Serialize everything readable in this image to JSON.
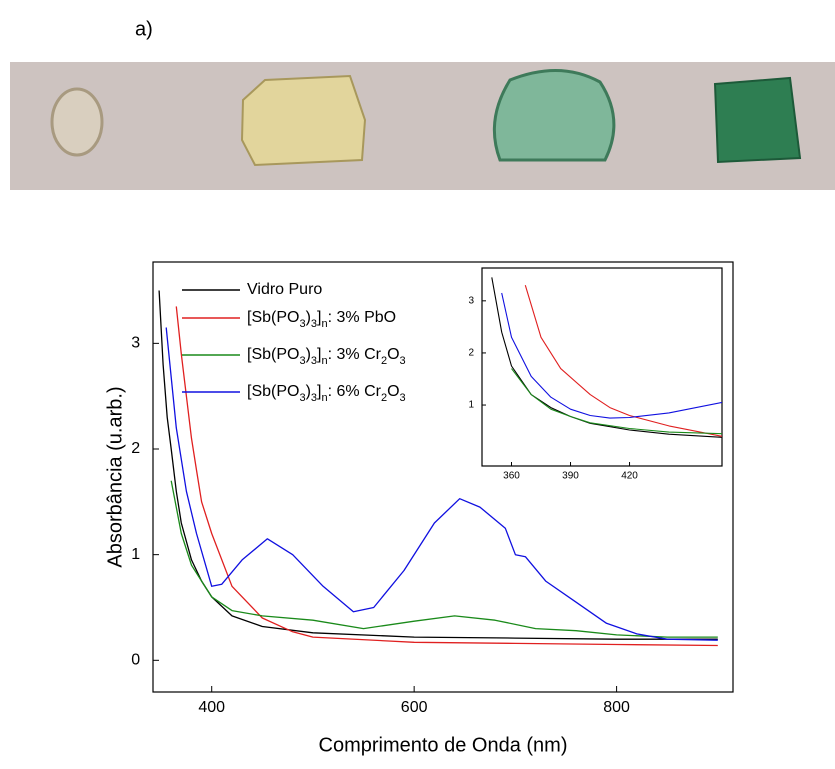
{
  "panel_label": "a)",
  "chart_data": [
    {
      "type": "line",
      "xlabel": "Comprimento de Onda (nm)",
      "ylabel": "Absorbância (u.arb.)",
      "xlim": [
        342,
        915
      ],
      "ylim": [
        -0.3,
        3.77
      ],
      "xticks": [
        400,
        600,
        800
      ],
      "yticks": [
        0,
        1,
        2,
        3
      ],
      "series": [
        {
          "name": "Vidro Puro",
          "color": "#000000",
          "x": [
            348,
            352,
            356,
            360,
            365,
            370,
            380,
            390,
            400,
            420,
            450,
            500,
            600,
            700,
            800,
            900
          ],
          "values": [
            3.5,
            2.8,
            2.3,
            2.0,
            1.6,
            1.3,
            0.95,
            0.75,
            0.6,
            0.42,
            0.32,
            0.26,
            0.22,
            0.21,
            0.2,
            0.2
          ]
        },
        {
          "name": "[Sb(PO3)3]n: 3% PbO",
          "color": "#e02020",
          "x": [
            365,
            370,
            375,
            380,
            385,
            390,
            400,
            420,
            450,
            480,
            500,
            600,
            700,
            800,
            900
          ],
          "values": [
            3.35,
            2.9,
            2.5,
            2.1,
            1.8,
            1.5,
            1.2,
            0.7,
            0.4,
            0.27,
            0.22,
            0.17,
            0.16,
            0.15,
            0.14
          ]
        },
        {
          "name": "[Sb(PO3)3]n: 3% Cr2O3",
          "color": "#1a8a1a",
          "x": [
            360,
            370,
            380,
            390,
            400,
            420,
            450,
            500,
            550,
            600,
            640,
            680,
            720,
            760,
            800,
            850,
            900
          ],
          "values": [
            1.7,
            1.2,
            0.9,
            0.75,
            0.6,
            0.47,
            0.42,
            0.38,
            0.3,
            0.37,
            0.42,
            0.38,
            0.3,
            0.28,
            0.24,
            0.22,
            0.22
          ]
        },
        {
          "name": "[Sb(PO3)3]n: 6% Cr2O3",
          "color": "#1010e0",
          "x": [
            355,
            365,
            375,
            385,
            400,
            410,
            430,
            455,
            480,
            510,
            540,
            560,
            590,
            620,
            645,
            665,
            690,
            700,
            710,
            730,
            760,
            790,
            820,
            850,
            900
          ],
          "values": [
            3.15,
            2.2,
            1.6,
            1.2,
            0.7,
            0.72,
            0.95,
            1.15,
            1.0,
            0.7,
            0.46,
            0.5,
            0.85,
            1.3,
            1.53,
            1.45,
            1.25,
            1.0,
            0.98,
            0.75,
            0.55,
            0.35,
            0.25,
            0.2,
            0.19
          ]
        }
      ]
    },
    {
      "type": "line",
      "xlim": [
        345,
        467
      ],
      "ylim": [
        -0.17,
        3.63
      ],
      "xticks": [
        360,
        390,
        420
      ],
      "yticks": [
        1,
        2,
        3
      ],
      "series": [
        {
          "color": "#000000",
          "x": [
            350,
            355,
            360,
            370,
            380,
            390,
            400,
            420,
            440,
            467
          ],
          "values": [
            3.45,
            2.4,
            1.75,
            1.2,
            0.95,
            0.78,
            0.65,
            0.52,
            0.44,
            0.38
          ]
        },
        {
          "color": "#e02020",
          "x": [
            367,
            375,
            385,
            400,
            410,
            420,
            440,
            467
          ],
          "values": [
            3.3,
            2.3,
            1.7,
            1.2,
            0.95,
            0.8,
            0.6,
            0.4
          ]
        },
        {
          "color": "#1a8a1a",
          "x": [
            360,
            370,
            380,
            390,
            400,
            420,
            440,
            467
          ],
          "values": [
            1.7,
            1.2,
            0.92,
            0.78,
            0.66,
            0.55,
            0.48,
            0.45
          ]
        },
        {
          "color": "#1010e0",
          "x": [
            355,
            360,
            370,
            380,
            390,
            400,
            410,
            420,
            440,
            467
          ],
          "values": [
            3.15,
            2.3,
            1.55,
            1.15,
            0.92,
            0.8,
            0.75,
            0.76,
            0.85,
            1.05
          ]
        }
      ]
    }
  ]
}
